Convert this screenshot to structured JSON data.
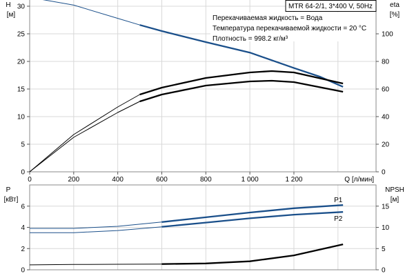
{
  "chart_data": [
    {
      "type": "line",
      "xlabel": "Q [л/мин]",
      "ylabel_left": "H",
      "yunit_left": "[м]",
      "ylabel_right": "eta",
      "yunit_right": "[%]",
      "xlim": [
        0,
        1573
      ],
      "ylim_left": [
        0,
        35
      ],
      "ylim_right": [
        0,
        140
      ],
      "xticks": [
        0,
        200,
        400,
        600,
        800,
        1000,
        1200
      ],
      "xtick_labels": [
        "0",
        "200",
        "400",
        "600",
        "800",
        "1 000",
        "1 200"
      ],
      "yticks_left": [
        0,
        5,
        10,
        15,
        20,
        25,
        30
      ],
      "yticks_right": [
        0,
        20,
        40,
        60,
        80,
        100
      ],
      "grid": true,
      "title_box": "MTR 64-2/1, 3*400 V, 50Hz",
      "annotations": [
        "Перекачиваемая жидкость = Вода",
        "Температура перекачиваемой жидкости = 20 °C",
        "Плотность = 998.2 кг/м³"
      ],
      "series": [
        {
          "axis": "left",
          "color": "#1a4f8a",
          "x": [
            0,
            200,
            400,
            500,
            600,
            800,
            1000,
            1200,
            1320,
            1423
          ],
          "y": [
            31.6,
            30.2,
            27.8,
            26.6,
            25.5,
            23.5,
            21.6,
            18.8,
            17.2,
            15.4
          ]
        },
        {
          "axis": "right",
          "color": "#000000",
          "x": [
            0,
            200,
            400,
            500,
            600,
            800,
            1000,
            1100,
            1200,
            1423
          ],
          "y": [
            0,
            27,
            47,
            56,
            61,
            68,
            72,
            73,
            72,
            64
          ]
        },
        {
          "axis": "right",
          "color": "#000000",
          "x": [
            0,
            200,
            400,
            500,
            600,
            800,
            1000,
            1100,
            1200,
            1423
          ],
          "y": [
            0,
            25,
            43,
            51,
            56,
            62.5,
            65.5,
            66,
            65,
            58
          ]
        }
      ]
    },
    {
      "type": "line",
      "ylabel_left": "P",
      "yunit_left": "[кВт]",
      "ylabel_right": "NPSH",
      "yunit_right": "[м]",
      "xlim": [
        0,
        1573
      ],
      "ylim_left": [
        0,
        8
      ],
      "ylim_right": [
        0,
        20
      ],
      "yticks_left": [
        0,
        2,
        4,
        6
      ],
      "yticks_right": [
        0,
        5,
        10,
        15
      ],
      "grid": true,
      "series": [
        {
          "name": "P1",
          "axis": "left",
          "color": "#1a4f8a",
          "x": [
            0,
            200,
            400,
            600,
            800,
            1000,
            1200,
            1423
          ],
          "y": [
            3.9,
            3.9,
            4.1,
            4.5,
            4.95,
            5.4,
            5.8,
            6.1
          ]
        },
        {
          "name": "P2",
          "axis": "left",
          "color": "#1a4f8a",
          "x": [
            0,
            200,
            400,
            600,
            800,
            1000,
            1200,
            1423
          ],
          "y": [
            3.5,
            3.5,
            3.7,
            4.05,
            4.45,
            4.85,
            5.2,
            5.45
          ]
        },
        {
          "axis": "right",
          "color": "#000000",
          "x": [
            0,
            200,
            400,
            600,
            800,
            1000,
            1200,
            1423
          ],
          "y": [
            1.15,
            1.25,
            1.3,
            1.35,
            1.5,
            2.0,
            3.4,
            6.0
          ]
        }
      ]
    }
  ]
}
